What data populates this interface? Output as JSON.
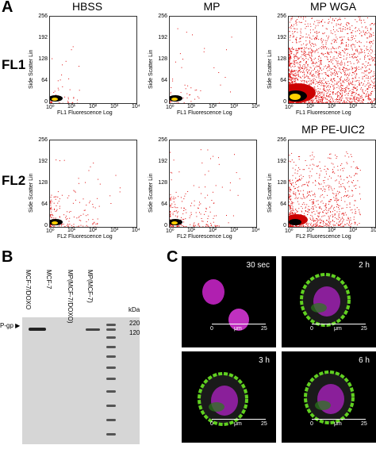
{
  "panels": {
    "a": "A",
    "b": "B",
    "c": "C"
  },
  "flow": {
    "col_titles": [
      "HBSS",
      "MP",
      "MP WGA"
    ],
    "extra_title": "MP PE-UIC2",
    "row_labels": [
      "FL1",
      "FL2"
    ],
    "y_axis_label": "Side Scatter Lin",
    "x_axis_labels": {
      "fl1": "FL1 Fluorescence Log",
      "fl2": "FL2 Fluorescence Log"
    },
    "y_ticks": [
      "256",
      "192",
      "128",
      "64",
      "0"
    ],
    "x_ticks": [
      "10⁰",
      "10¹",
      "10²",
      "10³",
      "10⁴"
    ]
  },
  "blot": {
    "lanes": [
      "MCF-7/DOXO",
      "MCF-7",
      "MP(MCF-7/DOXO)",
      "MP(MCF-7)"
    ],
    "kda_label": "kDa",
    "markers": [
      "220",
      "120"
    ],
    "band_label": "P-gp"
  },
  "micro": {
    "times": [
      "30 sec",
      "2 h",
      "3 h",
      "6 h"
    ],
    "scale": {
      "start": "0",
      "unit": "μm",
      "end": "25"
    }
  }
}
